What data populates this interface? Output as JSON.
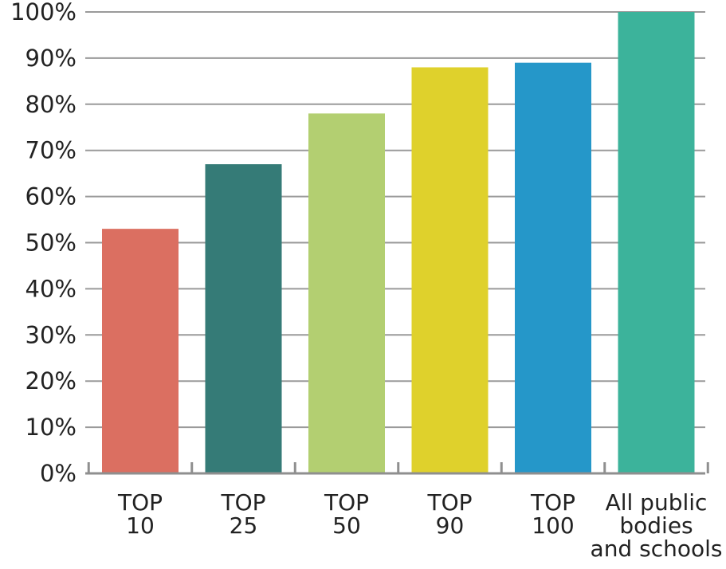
{
  "chart_data": {
    "type": "bar",
    "title": "",
    "xlabel": "",
    "ylabel": "",
    "categories": [
      [
        "TOP",
        "10"
      ],
      [
        "TOP",
        "25"
      ],
      [
        "TOP",
        "50"
      ],
      [
        "TOP",
        "90"
      ],
      [
        "TOP",
        "100"
      ],
      [
        "All public",
        "bodies",
        "and schools"
      ]
    ],
    "values": [
      53,
      67,
      78,
      88,
      89,
      100
    ],
    "colors": [
      "#db6f61",
      "#357b77",
      "#b3cf71",
      "#dfd12c",
      "#2597c9",
      "#3cb39b"
    ],
    "ylim": [
      0,
      100
    ],
    "yticks": [
      0,
      10,
      20,
      30,
      40,
      50,
      60,
      70,
      80,
      90,
      100
    ],
    "ytick_labels": [
      "0%",
      "10%",
      "20%",
      "30%",
      "40%",
      "50%",
      "60%",
      "70%",
      "80%",
      "90%",
      "100%"
    ],
    "grid": true,
    "legend": "none"
  }
}
